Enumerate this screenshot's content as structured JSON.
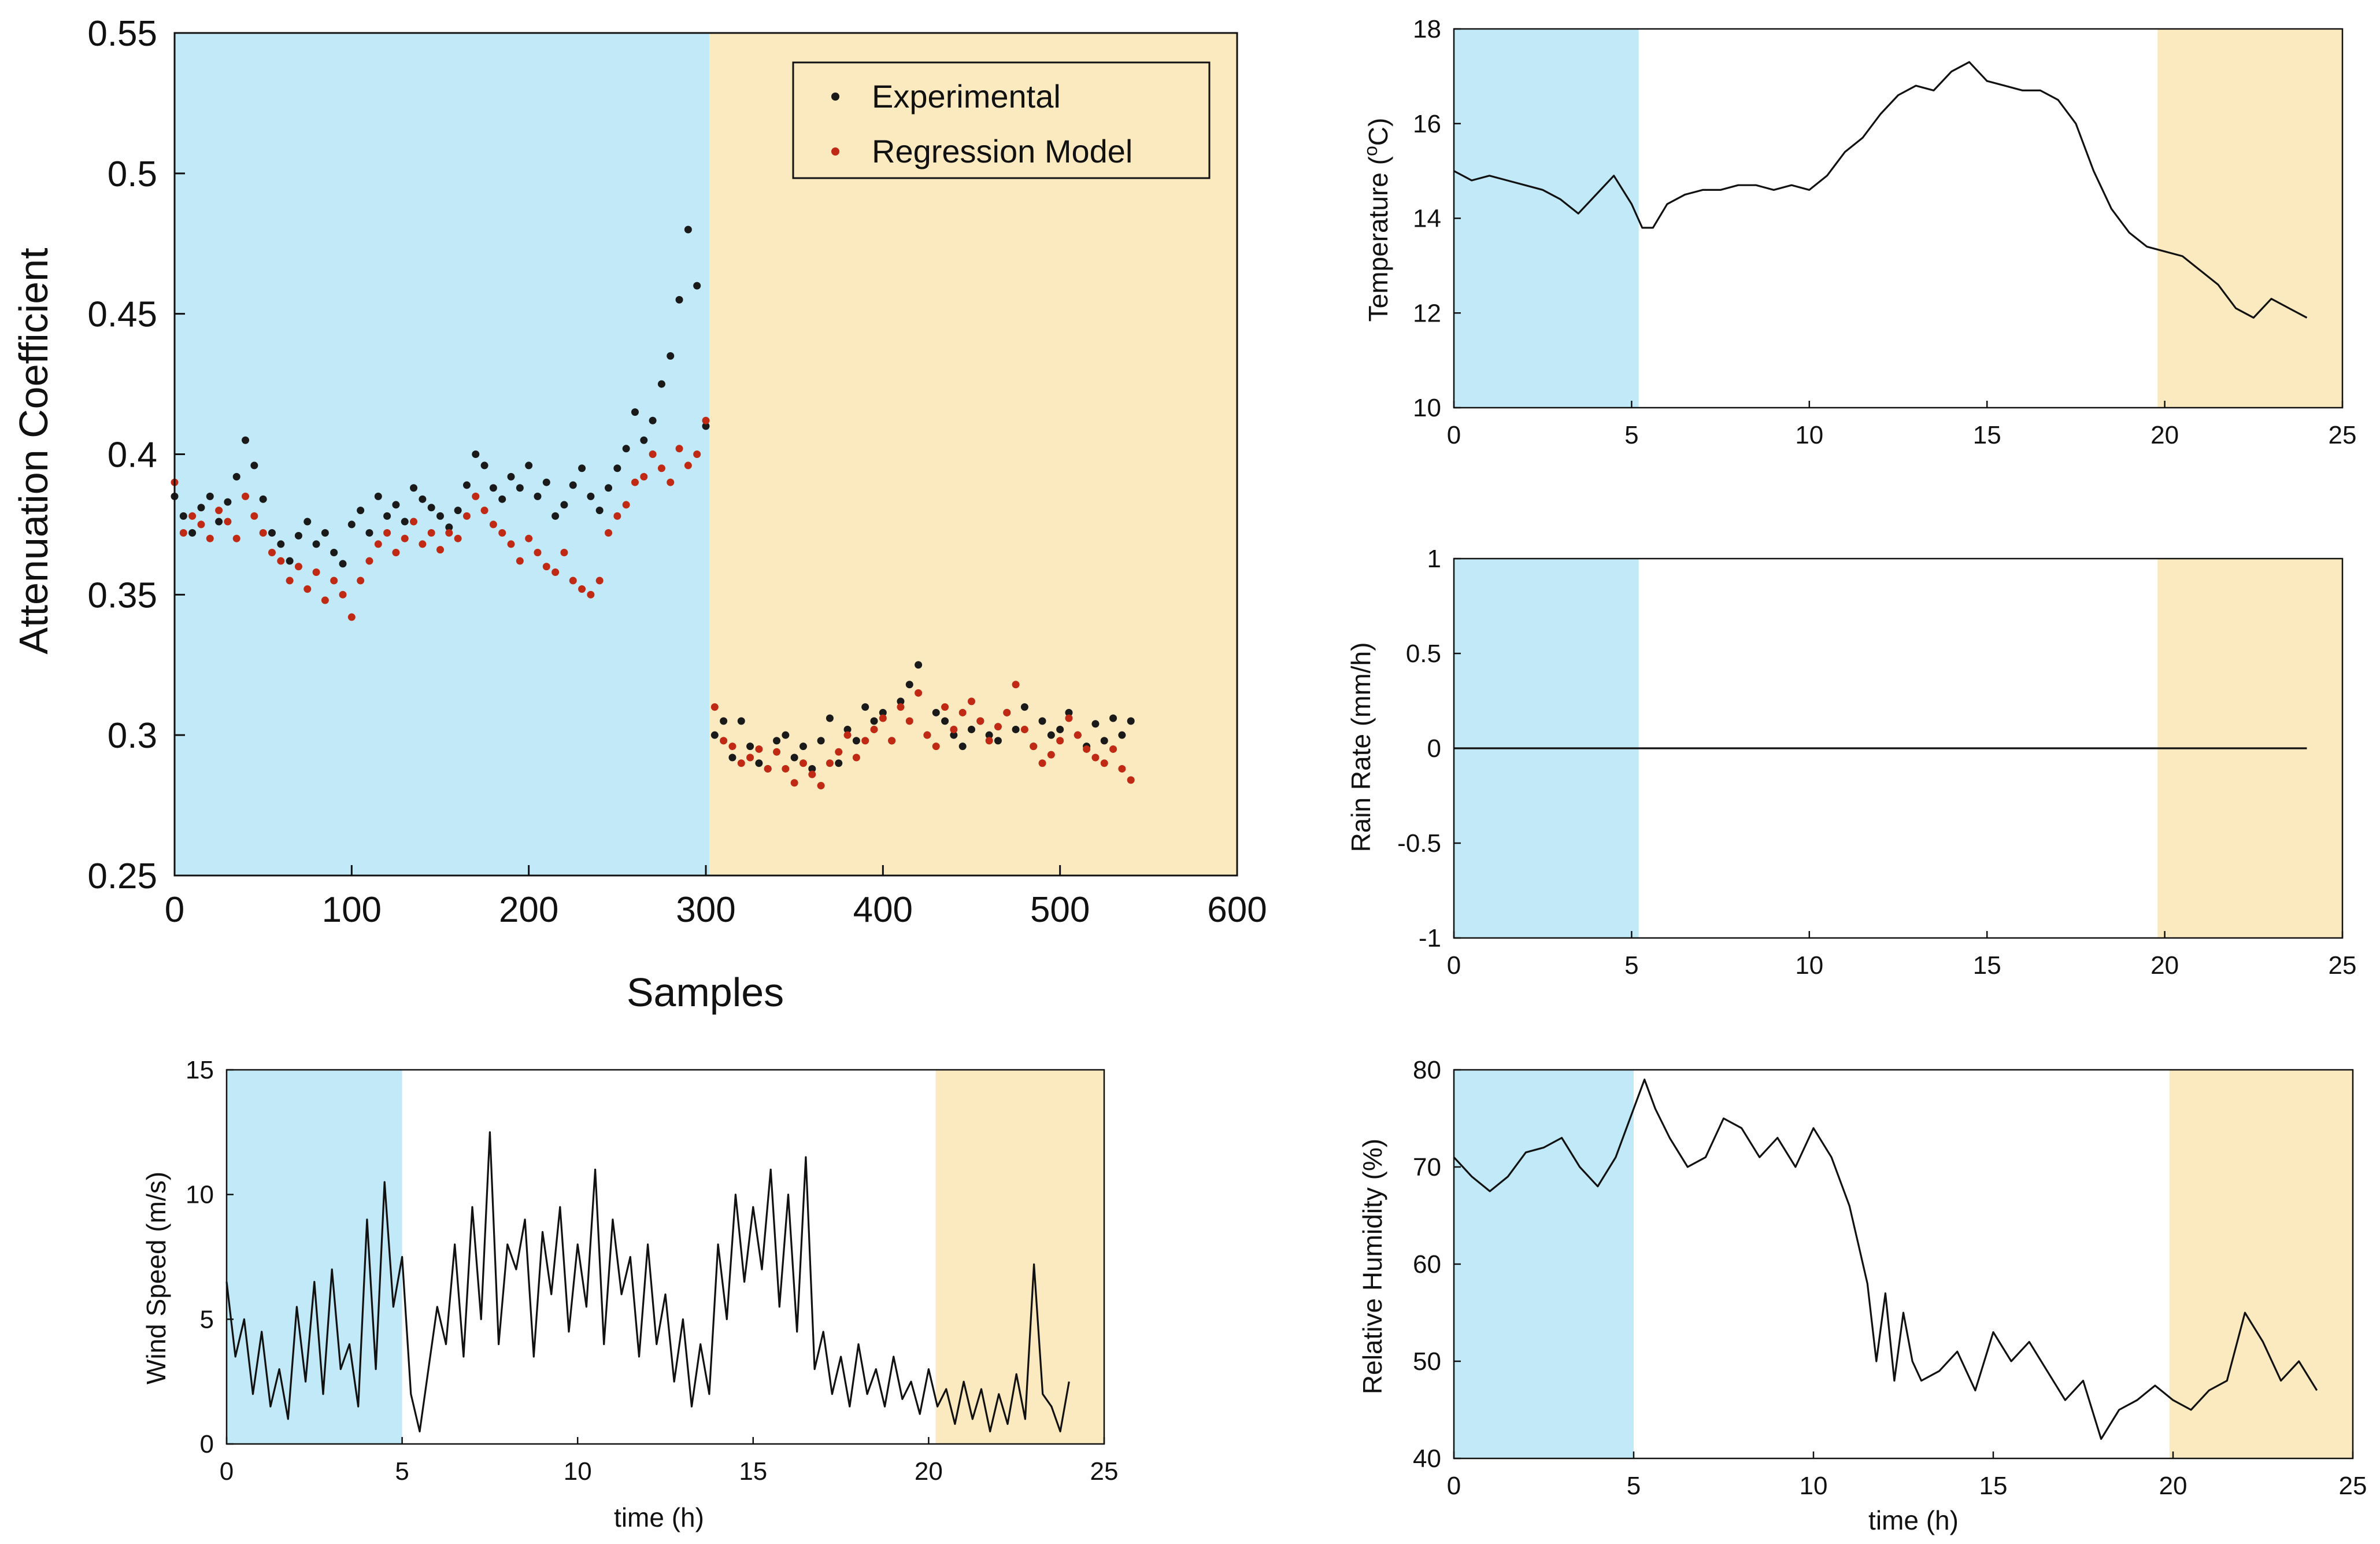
{
  "colors": {
    "blue_band": "#c2e9f7",
    "yellow_band": "#fbeac0",
    "experimental": "#1a1a1a",
    "regression": "#c02a14",
    "line": "#111111"
  },
  "chart_data": [
    {
      "id": "attenuation",
      "type": "scatter",
      "title": "",
      "xlabel": "Samples",
      "ylabel": "Attenuation Coefficient",
      "xlim": [
        0,
        600
      ],
      "ylim": [
        0.25,
        0.55
      ],
      "xticks": [
        "0",
        "100",
        "200",
        "300",
        "400",
        "500",
        "600"
      ],
      "yticks": [
        "0.25",
        "0.3",
        "0.35",
        "0.4",
        "0.45",
        "0.5",
        "0.55"
      ],
      "bands": [
        {
          "from": 0,
          "to": 302,
          "color": "blue"
        },
        {
          "from": 302,
          "to": 600,
          "color": "yellow"
        }
      ],
      "legend": {
        "placement": "top-right",
        "entries": [
          "Experimental",
          "Regression Model"
        ]
      },
      "series": [
        {
          "name": "Experimental",
          "x": [
            0,
            5,
            10,
            15,
            20,
            25,
            30,
            35,
            40,
            45,
            50,
            55,
            60,
            65,
            70,
            75,
            80,
            85,
            90,
            95,
            100,
            105,
            110,
            115,
            120,
            125,
            130,
            135,
            140,
            145,
            150,
            155,
            160,
            165,
            170,
            175,
            180,
            185,
            190,
            195,
            200,
            205,
            210,
            215,
            220,
            225,
            230,
            235,
            240,
            245,
            250,
            255,
            260,
            265,
            270,
            275,
            280,
            285,
            290,
            295,
            300,
            305,
            310,
            315,
            320,
            325,
            330,
            335,
            340,
            345,
            350,
            355,
            360,
            365,
            370,
            375,
            380,
            385,
            390,
            395,
            400,
            405,
            410,
            415,
            420,
            425,
            430,
            435,
            440,
            445,
            450,
            455,
            460,
            465,
            470,
            475,
            480,
            485,
            490,
            495,
            500,
            505,
            510,
            515,
            520,
            525,
            530,
            535,
            540
          ],
          "y": [
            0.385,
            0.378,
            0.372,
            0.381,
            0.385,
            0.376,
            0.383,
            0.392,
            0.405,
            0.396,
            0.384,
            0.372,
            0.368,
            0.362,
            0.371,
            0.376,
            0.368,
            0.372,
            0.365,
            0.361,
            0.375,
            0.38,
            0.372,
            0.385,
            0.378,
            0.382,
            0.376,
            0.388,
            0.384,
            0.381,
            0.378,
            0.374,
            0.38,
            0.389,
            0.4,
            0.396,
            0.388,
            0.384,
            0.392,
            0.388,
            0.396,
            0.385,
            0.39,
            0.378,
            0.382,
            0.389,
            0.395,
            0.385,
            0.38,
            0.388,
            0.395,
            0.402,
            0.415,
            0.405,
            0.412,
            0.425,
            0.435,
            0.455,
            0.48,
            0.46,
            0.41,
            0.3,
            0.305,
            0.292,
            0.305,
            0.296,
            0.29,
            0.288,
            0.298,
            0.3,
            0.292,
            0.296,
            0.288,
            0.298,
            0.306,
            0.29,
            0.302,
            0.298,
            0.31,
            0.305,
            0.308,
            0.298,
            0.312,
            0.318,
            0.325,
            0.3,
            0.308,
            0.305,
            0.3,
            0.296,
            0.302,
            0.305,
            0.3,
            0.298,
            0.308,
            0.302,
            0.31,
            0.296,
            0.305,
            0.3,
            0.302,
            0.308,
            0.3,
            0.296,
            0.304,
            0.298,
            0.306,
            0.3,
            0.305
          ]
        },
        {
          "name": "Regression Model",
          "x": [
            0,
            5,
            10,
            15,
            20,
            25,
            30,
            35,
            40,
            45,
            50,
            55,
            60,
            65,
            70,
            75,
            80,
            85,
            90,
            95,
            100,
            105,
            110,
            115,
            120,
            125,
            130,
            135,
            140,
            145,
            150,
            155,
            160,
            165,
            170,
            175,
            180,
            185,
            190,
            195,
            200,
            205,
            210,
            215,
            220,
            225,
            230,
            235,
            240,
            245,
            250,
            255,
            260,
            265,
            270,
            275,
            280,
            285,
            290,
            295,
            300,
            305,
            310,
            315,
            320,
            325,
            330,
            335,
            340,
            345,
            350,
            355,
            360,
            365,
            370,
            375,
            380,
            385,
            390,
            395,
            400,
            405,
            410,
            415,
            420,
            425,
            430,
            435,
            440,
            445,
            450,
            455,
            460,
            465,
            470,
            475,
            480,
            485,
            490,
            495,
            500,
            505,
            510,
            515,
            520,
            525,
            530,
            535,
            540
          ],
          "y": [
            0.39,
            0.372,
            0.378,
            0.375,
            0.37,
            0.38,
            0.376,
            0.37,
            0.385,
            0.378,
            0.372,
            0.365,
            0.362,
            0.355,
            0.36,
            0.352,
            0.358,
            0.348,
            0.355,
            0.35,
            0.342,
            0.355,
            0.362,
            0.368,
            0.372,
            0.365,
            0.37,
            0.376,
            0.368,
            0.372,
            0.366,
            0.372,
            0.37,
            0.378,
            0.385,
            0.38,
            0.375,
            0.372,
            0.368,
            0.362,
            0.37,
            0.365,
            0.36,
            0.358,
            0.365,
            0.355,
            0.352,
            0.35,
            0.355,
            0.372,
            0.378,
            0.382,
            0.39,
            0.392,
            0.4,
            0.395,
            0.39,
            0.402,
            0.396,
            0.4,
            0.412,
            0.31,
            0.298,
            0.296,
            0.29,
            0.292,
            0.295,
            0.288,
            0.294,
            0.288,
            0.283,
            0.29,
            0.286,
            0.282,
            0.29,
            0.294,
            0.3,
            0.292,
            0.298,
            0.302,
            0.306,
            0.298,
            0.31,
            0.305,
            0.315,
            0.3,
            0.296,
            0.31,
            0.302,
            0.308,
            0.312,
            0.305,
            0.298,
            0.303,
            0.308,
            0.318,
            0.302,
            0.296,
            0.29,
            0.293,
            0.298,
            0.306,
            0.3,
            0.295,
            0.292,
            0.29,
            0.295,
            0.288,
            0.284
          ]
        }
      ]
    },
    {
      "id": "temperature",
      "type": "line",
      "title": "",
      "xlabel": "",
      "ylabel": "Temperature (°C)",
      "xlim": [
        0,
        25
      ],
      "ylim": [
        10,
        18
      ],
      "xticks": [
        "0",
        "5",
        "10",
        "15",
        "20",
        "25"
      ],
      "yticks": [
        "10",
        "12",
        "14",
        "16",
        "18"
      ],
      "bands": [
        {
          "from": 0,
          "to": 5.2,
          "color": "blue"
        },
        {
          "from": 19.8,
          "to": 25,
          "color": "yellow"
        }
      ],
      "series": [
        {
          "x": [
            0,
            0.5,
            1,
            1.5,
            2,
            2.5,
            3,
            3.5,
            4,
            4.5,
            5,
            5.3,
            5.6,
            6,
            6.5,
            7,
            7.5,
            8,
            8.5,
            9,
            9.5,
            10,
            10.5,
            11,
            11.5,
            12,
            12.5,
            13,
            13.5,
            14,
            14.5,
            15,
            15.5,
            16,
            16.5,
            17,
            17.5,
            18,
            18.5,
            19,
            19.5,
            20,
            20.5,
            21,
            21.5,
            22,
            22.5,
            23,
            23.5,
            24
          ],
          "y": [
            15,
            14.8,
            14.9,
            14.8,
            14.7,
            14.6,
            14.4,
            14.1,
            14.5,
            14.9,
            14.3,
            13.8,
            13.8,
            14.3,
            14.5,
            14.6,
            14.6,
            14.7,
            14.7,
            14.6,
            14.7,
            14.6,
            14.9,
            15.4,
            15.7,
            16.2,
            16.6,
            16.8,
            16.7,
            17.1,
            17.3,
            16.9,
            16.8,
            16.7,
            16.7,
            16.5,
            16,
            15,
            14.2,
            13.7,
            13.4,
            13.3,
            13.2,
            12.9,
            12.6,
            12.1,
            11.9,
            12.3,
            12.1,
            11.9
          ]
        }
      ]
    },
    {
      "id": "rain",
      "type": "line",
      "title": "",
      "xlabel": "",
      "ylabel": "Rain Rate (mm/h)",
      "xlim": [
        0,
        25
      ],
      "ylim": [
        -1,
        1
      ],
      "xticks": [
        "0",
        "5",
        "10",
        "15",
        "20",
        "25"
      ],
      "yticks": [
        "-1",
        "-0.5",
        "0",
        "0.5",
        "1"
      ],
      "bands": [
        {
          "from": 0,
          "to": 5.2,
          "color": "blue"
        },
        {
          "from": 19.8,
          "to": 25,
          "color": "yellow"
        }
      ],
      "series": [
        {
          "x": [
            0,
            24
          ],
          "y": [
            0,
            0
          ]
        }
      ]
    },
    {
      "id": "wind",
      "type": "line",
      "title": "",
      "xlabel": "time (h)",
      "ylabel": "Wind Speed (m/s)",
      "xlim": [
        0,
        25
      ],
      "ylim": [
        0,
        15
      ],
      "xticks": [
        "0",
        "5",
        "10",
        "15",
        "20",
        "25"
      ],
      "yticks": [
        "0",
        "5",
        "10",
        "15"
      ],
      "bands": [
        {
          "from": 0,
          "to": 5.0,
          "color": "blue"
        },
        {
          "from": 20.2,
          "to": 25,
          "color": "yellow"
        }
      ],
      "series": [
        {
          "x": [
            0,
            0.25,
            0.5,
            0.75,
            1,
            1.25,
            1.5,
            1.75,
            2,
            2.25,
            2.5,
            2.75,
            3,
            3.25,
            3.5,
            3.75,
            4,
            4.25,
            4.5,
            4.75,
            5,
            5.25,
            5.5,
            5.75,
            6,
            6.25,
            6.5,
            6.75,
            7,
            7.25,
            7.5,
            7.75,
            8,
            8.25,
            8.5,
            8.75,
            9,
            9.25,
            9.5,
            9.75,
            10,
            10.25,
            10.5,
            10.75,
            11,
            11.25,
            11.5,
            11.75,
            12,
            12.25,
            12.5,
            12.75,
            13,
            13.25,
            13.5,
            13.75,
            14,
            14.25,
            14.5,
            14.75,
            15,
            15.25,
            15.5,
            15.75,
            16,
            16.25,
            16.5,
            16.75,
            17,
            17.25,
            17.5,
            17.75,
            18,
            18.25,
            18.5,
            18.75,
            19,
            19.25,
            19.5,
            19.75,
            20,
            20.25,
            20.5,
            20.75,
            21,
            21.25,
            21.5,
            21.75,
            22,
            22.25,
            22.5,
            22.75,
            23,
            23.25,
            23.5,
            23.75,
            24
          ],
          "y": [
            6.5,
            3.5,
            5,
            2,
            4.5,
            1.5,
            3,
            1,
            5.5,
            2.5,
            6.5,
            2,
            7,
            3,
            4,
            1.5,
            9,
            3,
            10.5,
            5.5,
            7.5,
            2,
            0.5,
            3,
            5.5,
            4,
            8,
            3.5,
            9.5,
            5,
            12.5,
            4,
            8,
            7,
            9,
            3.5,
            8.5,
            6,
            9.5,
            4.5,
            8,
            5.5,
            11,
            4,
            9,
            6,
            7.5,
            3.5,
            8,
            4,
            6,
            2.5,
            5,
            1.5,
            4,
            2,
            8,
            5,
            10,
            6.5,
            9.5,
            7,
            11,
            5.5,
            10,
            4.5,
            11.5,
            3,
            4.5,
            2,
            3.5,
            1.5,
            4,
            2,
            3,
            1.5,
            3.5,
            1.8,
            2.5,
            1.2,
            3,
            1.5,
            2.2,
            0.8,
            2.5,
            1,
            2.2,
            0.5,
            2,
            0.8,
            2.8,
            1,
            7.2,
            2,
            1.5,
            0.5,
            2.5
          ]
        }
      ]
    },
    {
      "id": "humidity",
      "type": "line",
      "title": "",
      "xlabel": "time (h)",
      "ylabel": "Relative Humidity (%)",
      "xlim": [
        0,
        25
      ],
      "ylim": [
        40,
        80
      ],
      "xticks": [
        "0",
        "5",
        "10",
        "15",
        "20",
        "25"
      ],
      "yticks": [
        "40",
        "50",
        "60",
        "70",
        "80"
      ],
      "bands": [
        {
          "from": 0,
          "to": 5.0,
          "color": "blue"
        },
        {
          "from": 19.9,
          "to": 25,
          "color": "yellow"
        }
      ],
      "series": [
        {
          "x": [
            0,
            0.5,
            1,
            1.5,
            2,
            2.5,
            3,
            3.5,
            4,
            4.5,
            5,
            5.3,
            5.6,
            6,
            6.5,
            7,
            7.5,
            8,
            8.5,
            9,
            9.5,
            10,
            10.5,
            11,
            11.25,
            11.5,
            11.75,
            12,
            12.25,
            12.5,
            12.75,
            13,
            13.5,
            14,
            14.5,
            15,
            15.5,
            16,
            16.5,
            17,
            17.5,
            18,
            18.5,
            19,
            19.5,
            20,
            20.5,
            21,
            21.5,
            22,
            22.5,
            23,
            23.5,
            24
          ],
          "y": [
            71,
            69,
            67.5,
            69,
            71.5,
            72,
            73,
            70,
            68,
            71,
            76,
            79,
            76,
            73,
            70,
            71,
            75,
            74,
            71,
            73,
            70,
            74,
            71,
            66,
            62,
            58,
            50,
            57,
            48,
            55,
            50,
            48,
            49,
            51,
            47,
            53,
            50,
            52,
            49,
            46,
            48,
            42,
            45,
            46,
            47.5,
            46,
            45,
            47,
            48,
            55,
            52,
            48,
            50,
            47
          ]
        }
      ]
    }
  ]
}
